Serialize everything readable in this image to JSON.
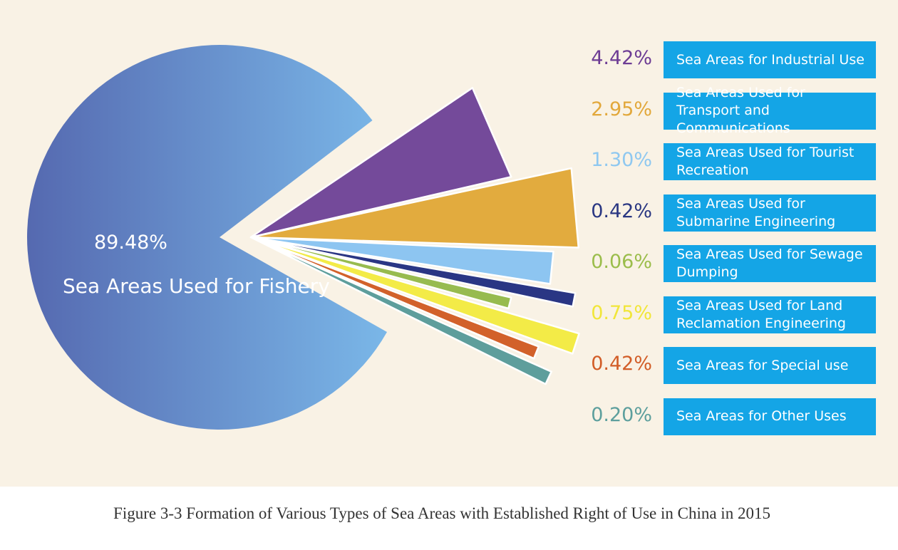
{
  "chart_data": {
    "type": "pie",
    "caption": "Figure 3-3 Formation of Various Types of Sea Areas with Established Right of Use in China in 2015",
    "main_slice": {
      "label": "Sea Areas Used for Fishery",
      "value": 89.48,
      "value_text": "89.48%"
    },
    "slices": [
      {
        "label": "Sea Areas for Industrial Use",
        "value": 4.42,
        "value_text": "4.42%",
        "color": "#744a9a",
        "label_color": "#6d3c94"
      },
      {
        "label": "Sea Areas Used for Transport and Communications",
        "value": 2.95,
        "value_text": "2.95%",
        "color": "#e2ab3e",
        "label_color": "#e2a83b"
      },
      {
        "label": "Sea Areas Used for Tourist Recreation",
        "value": 1.3,
        "value_text": "1.30%",
        "color": "#8dc5f1",
        "label_color": "#8fc8f0"
      },
      {
        "label": "Sea Areas Used for Submarine Engineering",
        "value": 0.42,
        "value_text": "0.42%",
        "color": "#2a3684",
        "label_color": "#2a3782"
      },
      {
        "label": "Sea Areas Used for Sewage Dumping",
        "value": 0.06,
        "value_text": "0.06%",
        "color": "#97bb4f",
        "label_color": "#9bbd4b"
      },
      {
        "label": "Sea Areas Used for Land Reclamation Engineering",
        "value": 0.75,
        "value_text": "0.75%",
        "color": "#f3eb47",
        "label_color": "#f1e63a"
      },
      {
        "label": "Sea Areas for Special use",
        "value": 0.42,
        "value_text": "0.42%",
        "color": "#d2612a",
        "label_color": "#d25d27"
      },
      {
        "label": "Sea Areas for Other Uses",
        "value": 0.2,
        "value_text": "0.20%",
        "color": "#5e9e9c",
        "label_color": "#5d9f9d"
      }
    ],
    "colors": {
      "background": "#f9f2e5",
      "label_box": "#14a5e6",
      "main_slice_dark": "#5569b0",
      "main_slice_light": "#7ab7e8"
    }
  }
}
